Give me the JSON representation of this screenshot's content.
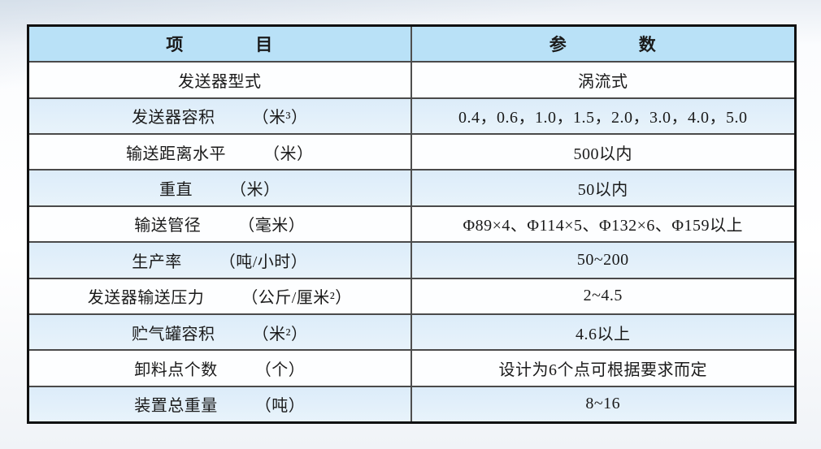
{
  "table": {
    "columns": {
      "item_header": "项　　　　目",
      "param_header": "参　　　　数"
    },
    "rows": [
      {
        "item": "发送器型式",
        "unit": "",
        "value": "涡流式"
      },
      {
        "item": "发送器容积",
        "unit": "（米³）",
        "value": "0.4，0.6，1.0，1.5，2.0，3.0，4.0，5.0"
      },
      {
        "item": "输送距离水平",
        "unit": "（米）",
        "value": "500以内"
      },
      {
        "item": "重直",
        "unit": "（米）",
        "value": "50以内"
      },
      {
        "item": "输送管径",
        "unit": "（毫米）",
        "value": "Φ89×4、Φ114×5、Φ132×6、Φ159以上"
      },
      {
        "item": "生产率",
        "unit": "（吨/小时）",
        "value": "50~200"
      },
      {
        "item": "发送器输送压力",
        "unit": "（公斤/厘米²）",
        "value": "2~4.5"
      },
      {
        "item": "贮气罐容积",
        "unit": "（米²）",
        "value": "4.6以上"
      },
      {
        "item": "卸料点个数",
        "unit": "（个）",
        "value": "设计为6个点可根据要求而定"
      },
      {
        "item": "装置总重量",
        "unit": "（吨）",
        "value": "8~16"
      }
    ],
    "colors": {
      "header_bg": "#b9e1f7",
      "alt_row_bg": "#dcecf9",
      "row_bg": "#fdfeff",
      "border": "#101010"
    }
  }
}
